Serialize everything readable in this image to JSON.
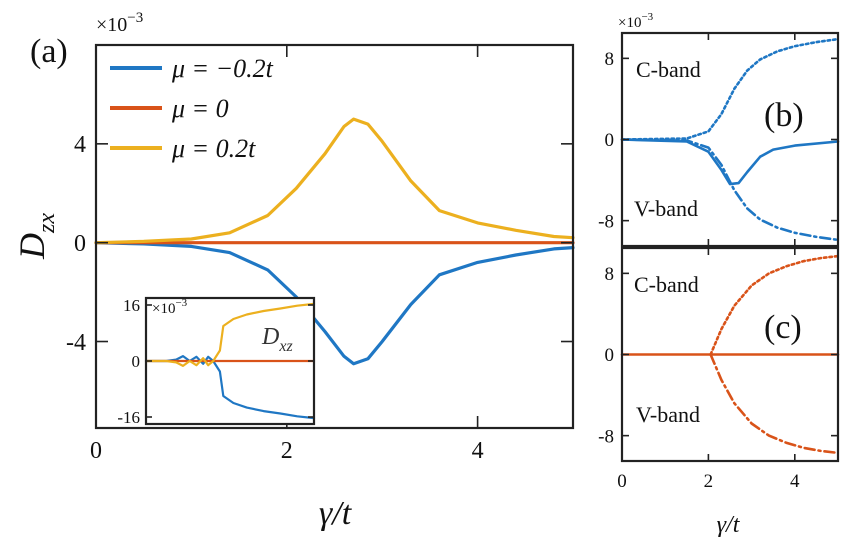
{
  "colors": {
    "blue": "#1f77c4",
    "orange": "#d95319",
    "yellow": "#ecb01f"
  },
  "chart_data": [
    {
      "panel": "a",
      "label": "(a)",
      "type": "line",
      "xlabel": "γ/t",
      "ylabel": "D",
      "ylabel_sub": "zx",
      "multiplier_base": "×10",
      "multiplier_exp": "−3",
      "xlim": [
        0,
        5
      ],
      "ylim": [
        -0.0075,
        0.008
      ],
      "xticks": [
        0,
        2,
        4
      ],
      "xticklabels": [
        "0",
        "2",
        "4"
      ],
      "yticks": [
        -0.004,
        0,
        0.004
      ],
      "yticklabels": [
        "-4",
        "0",
        "4"
      ],
      "legend_position": "top-left",
      "series": [
        {
          "name": "μ = −0.2t",
          "color": "#1f77c4",
          "style": "solid",
          "x": [
            0,
            0.5,
            1,
            1.4,
            1.8,
            2.1,
            2.4,
            2.6,
            2.7,
            2.85,
            3.0,
            3.3,
            3.6,
            4.0,
            4.4,
            4.8,
            5.0
          ],
          "y": [
            0,
            -5e-05,
            -0.00015,
            -0.0004,
            -0.0011,
            -0.0022,
            -0.0036,
            -0.0046,
            -0.0049,
            -0.0047,
            -0.004,
            -0.0025,
            -0.0013,
            -0.0008,
            -0.0005,
            -0.00025,
            -0.0002
          ]
        },
        {
          "name": "μ = 0",
          "color": "#d95319",
          "style": "solid",
          "x": [
            0,
            5
          ],
          "y": [
            0,
            0
          ]
        },
        {
          "name": "μ = 0.2t",
          "color": "#ecb01f",
          "style": "solid",
          "x": [
            0,
            0.5,
            1,
            1.4,
            1.8,
            2.1,
            2.4,
            2.6,
            2.7,
            2.85,
            3.0,
            3.3,
            3.6,
            4.0,
            4.4,
            4.8,
            5.0
          ],
          "y": [
            0,
            5e-05,
            0.00015,
            0.0004,
            0.0011,
            0.0022,
            0.0036,
            0.0047,
            0.005,
            0.0048,
            0.0041,
            0.0025,
            0.0013,
            0.0008,
            0.0005,
            0.00025,
            0.0002
          ]
        }
      ]
    },
    {
      "panel": "a-inset",
      "type": "line",
      "annotation": "D",
      "annotation_sub": "xz",
      "multiplier_base": "×10",
      "multiplier_exp": "−3",
      "xlim": [
        0,
        5
      ],
      "ylim": [
        -0.018,
        0.018
      ],
      "yticks": [
        -0.016,
        0,
        0.016
      ],
      "yticklabels": [
        "-16",
        "0",
        "16"
      ],
      "series": [
        {
          "color": "#1f77c4",
          "style": "solid",
          "x": [
            0,
            0.6,
            0.9,
            1.1,
            1.3,
            1.5,
            1.7,
            1.85,
            2.0,
            2.2,
            2.3,
            2.6,
            3.0,
            3.5,
            4.0,
            4.5,
            5.0
          ],
          "y": [
            0,
            0,
            0.0004,
            0.0014,
            0,
            0.0012,
            -0.0008,
            0.0012,
            0,
            -0.003,
            -0.01,
            -0.012,
            -0.0133,
            -0.0143,
            -0.015,
            -0.0158,
            -0.0163
          ]
        },
        {
          "color": "#d95319",
          "style": "solid",
          "x": [
            0,
            5
          ],
          "y": [
            0,
            0
          ]
        },
        {
          "color": "#ecb01f",
          "style": "solid",
          "x": [
            0,
            0.6,
            0.9,
            1.1,
            1.3,
            1.5,
            1.7,
            1.85,
            2.0,
            2.2,
            2.3,
            2.6,
            3.0,
            3.5,
            4.0,
            4.5,
            5.0
          ],
          "y": [
            0,
            0,
            -0.0004,
            -0.0014,
            0,
            -0.0012,
            0.0008,
            -0.0012,
            0,
            0.003,
            0.01,
            0.012,
            0.0133,
            0.0143,
            0.015,
            0.0158,
            0.0163
          ]
        }
      ]
    },
    {
      "panel": "b",
      "label": "(b)",
      "type": "line",
      "multiplier_base": "×10",
      "multiplier_exp": "−3",
      "xlim": [
        0,
        5
      ],
      "ylim": [
        -0.0105,
        0.0105
      ],
      "yticks": [
        -0.008,
        0,
        0.008
      ],
      "yticklabels": [
        "-8",
        "0",
        "8"
      ],
      "annotations": [
        "C-band",
        "V-band"
      ],
      "series": [
        {
          "color": "#1f77c4",
          "style": "solid",
          "x": [
            0,
            1.5,
            2.0,
            2.3,
            2.5,
            2.7,
            2.9,
            3.2,
            3.5,
            4.0,
            5.0
          ],
          "y": [
            0,
            -0.0002,
            -0.0012,
            -0.003,
            -0.0044,
            -0.0043,
            -0.0032,
            -0.0017,
            -0.001,
            -0.0006,
            -0.0002
          ]
        },
        {
          "color": "#1f77c4",
          "style": "dotted",
          "x": [
            0,
            1.5,
            2.0,
            2.3,
            2.6,
            2.9,
            3.2,
            3.6,
            4.0,
            4.5,
            5.0
          ],
          "y": [
            0,
            0.0001,
            0.0008,
            0.0025,
            0.005,
            0.0068,
            0.0079,
            0.0087,
            0.0092,
            0.0096,
            0.0099
          ]
        },
        {
          "color": "#1f77c4",
          "style": "dashdot",
          "x": [
            0,
            1.5,
            2.0,
            2.3,
            2.6,
            2.9,
            3.2,
            3.6,
            4.0,
            4.5,
            5.0
          ],
          "y": [
            0,
            -0.0001,
            -0.0008,
            -0.0025,
            -0.005,
            -0.0068,
            -0.0079,
            -0.0087,
            -0.0092,
            -0.0096,
            -0.0099
          ]
        }
      ]
    },
    {
      "panel": "c",
      "label": "(c)",
      "type": "line",
      "xlabel": "γ/t",
      "xlim": [
        0,
        5
      ],
      "ylim": [
        -0.0105,
        0.0105
      ],
      "xticks": [
        0,
        2,
        4
      ],
      "xticklabels": [
        "0",
        "2",
        "4"
      ],
      "yticks": [
        -0.008,
        0,
        0.008
      ],
      "yticklabels": [
        "-8",
        "0",
        "8"
      ],
      "annotations": [
        "C-band",
        "V-band"
      ],
      "series": [
        {
          "color": "#d95319",
          "style": "solid",
          "x": [
            0,
            5
          ],
          "y": [
            0,
            0
          ]
        },
        {
          "color": "#d95319",
          "style": "dotted",
          "x": [
            2.05,
            2.3,
            2.6,
            3.0,
            3.4,
            3.8,
            4.2,
            4.6,
            5.0
          ],
          "y": [
            0,
            0.0025,
            0.0048,
            0.0068,
            0.008,
            0.0087,
            0.0092,
            0.0095,
            0.0097
          ]
        },
        {
          "color": "#d95319",
          "style": "dashdot",
          "x": [
            2.05,
            2.3,
            2.6,
            3.0,
            3.4,
            3.8,
            4.2,
            4.6,
            5.0
          ],
          "y": [
            0,
            -0.0025,
            -0.0048,
            -0.0068,
            -0.008,
            -0.0087,
            -0.0092,
            -0.0095,
            -0.0097
          ]
        }
      ]
    }
  ]
}
